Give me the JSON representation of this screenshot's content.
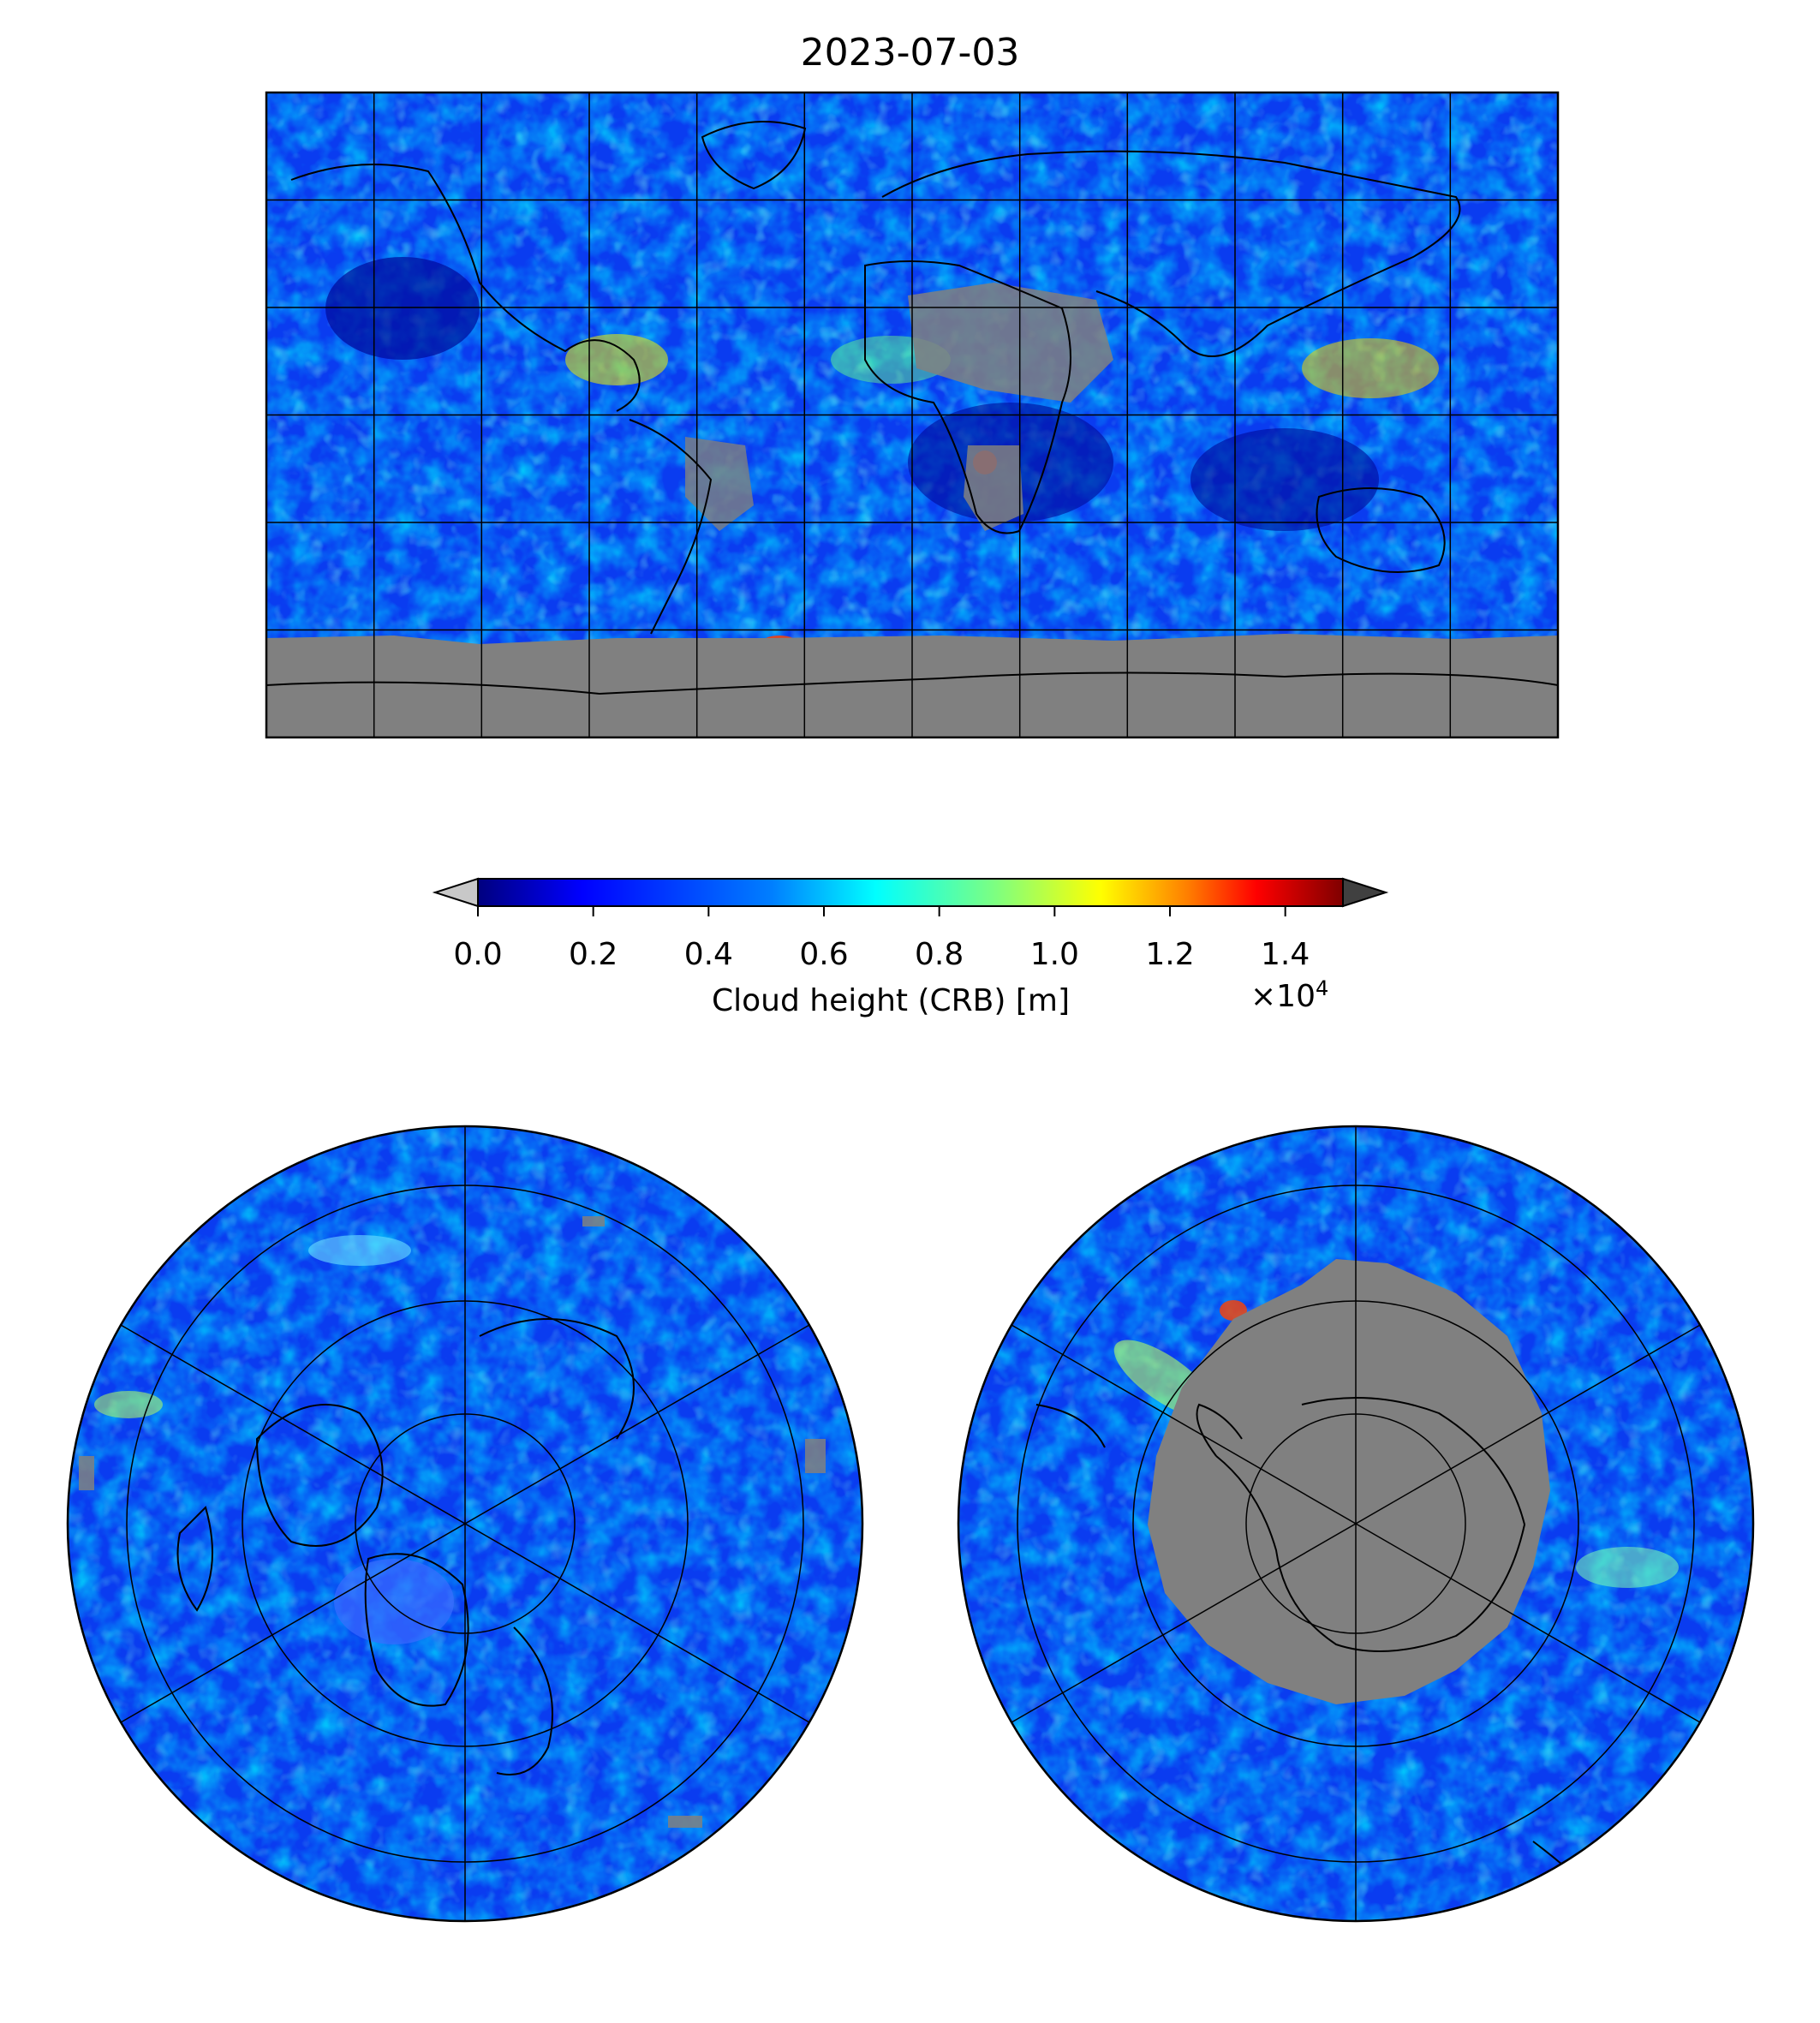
{
  "title": "2023-07-03",
  "colorbar": {
    "label": "Cloud height (CRB) [m]",
    "multiplier_base": "×10",
    "multiplier_exp": "4",
    "ticks": [
      "0.0",
      "0.2",
      "0.4",
      "0.6",
      "0.8",
      "1.0",
      "1.2",
      "1.4"
    ],
    "tick_values": [
      0.0,
      0.2,
      0.4,
      0.6,
      0.8,
      1.0,
      1.2,
      1.4
    ],
    "range": [
      0.0,
      1.5
    ],
    "extend": "both",
    "under_color": "#c8c8c8",
    "over_color": "#404040",
    "colormap": [
      "#00007f",
      "#0000ff",
      "#007fff",
      "#00ffff",
      "#7fff7f",
      "#ffff00",
      "#ff7f00",
      "#ff0000",
      "#7f0000"
    ]
  },
  "maps": [
    {
      "name": "global",
      "projection": "equirectangular",
      "graticule_lon_step": 30,
      "graticule_lat_step": 30,
      "missing_color": "#808080"
    },
    {
      "name": "north-polar",
      "projection": "north-polar-stereographic",
      "missing_color": "#808080"
    },
    {
      "name": "south-polar",
      "projection": "south-polar-stereographic",
      "missing_color": "#808080"
    }
  ]
}
